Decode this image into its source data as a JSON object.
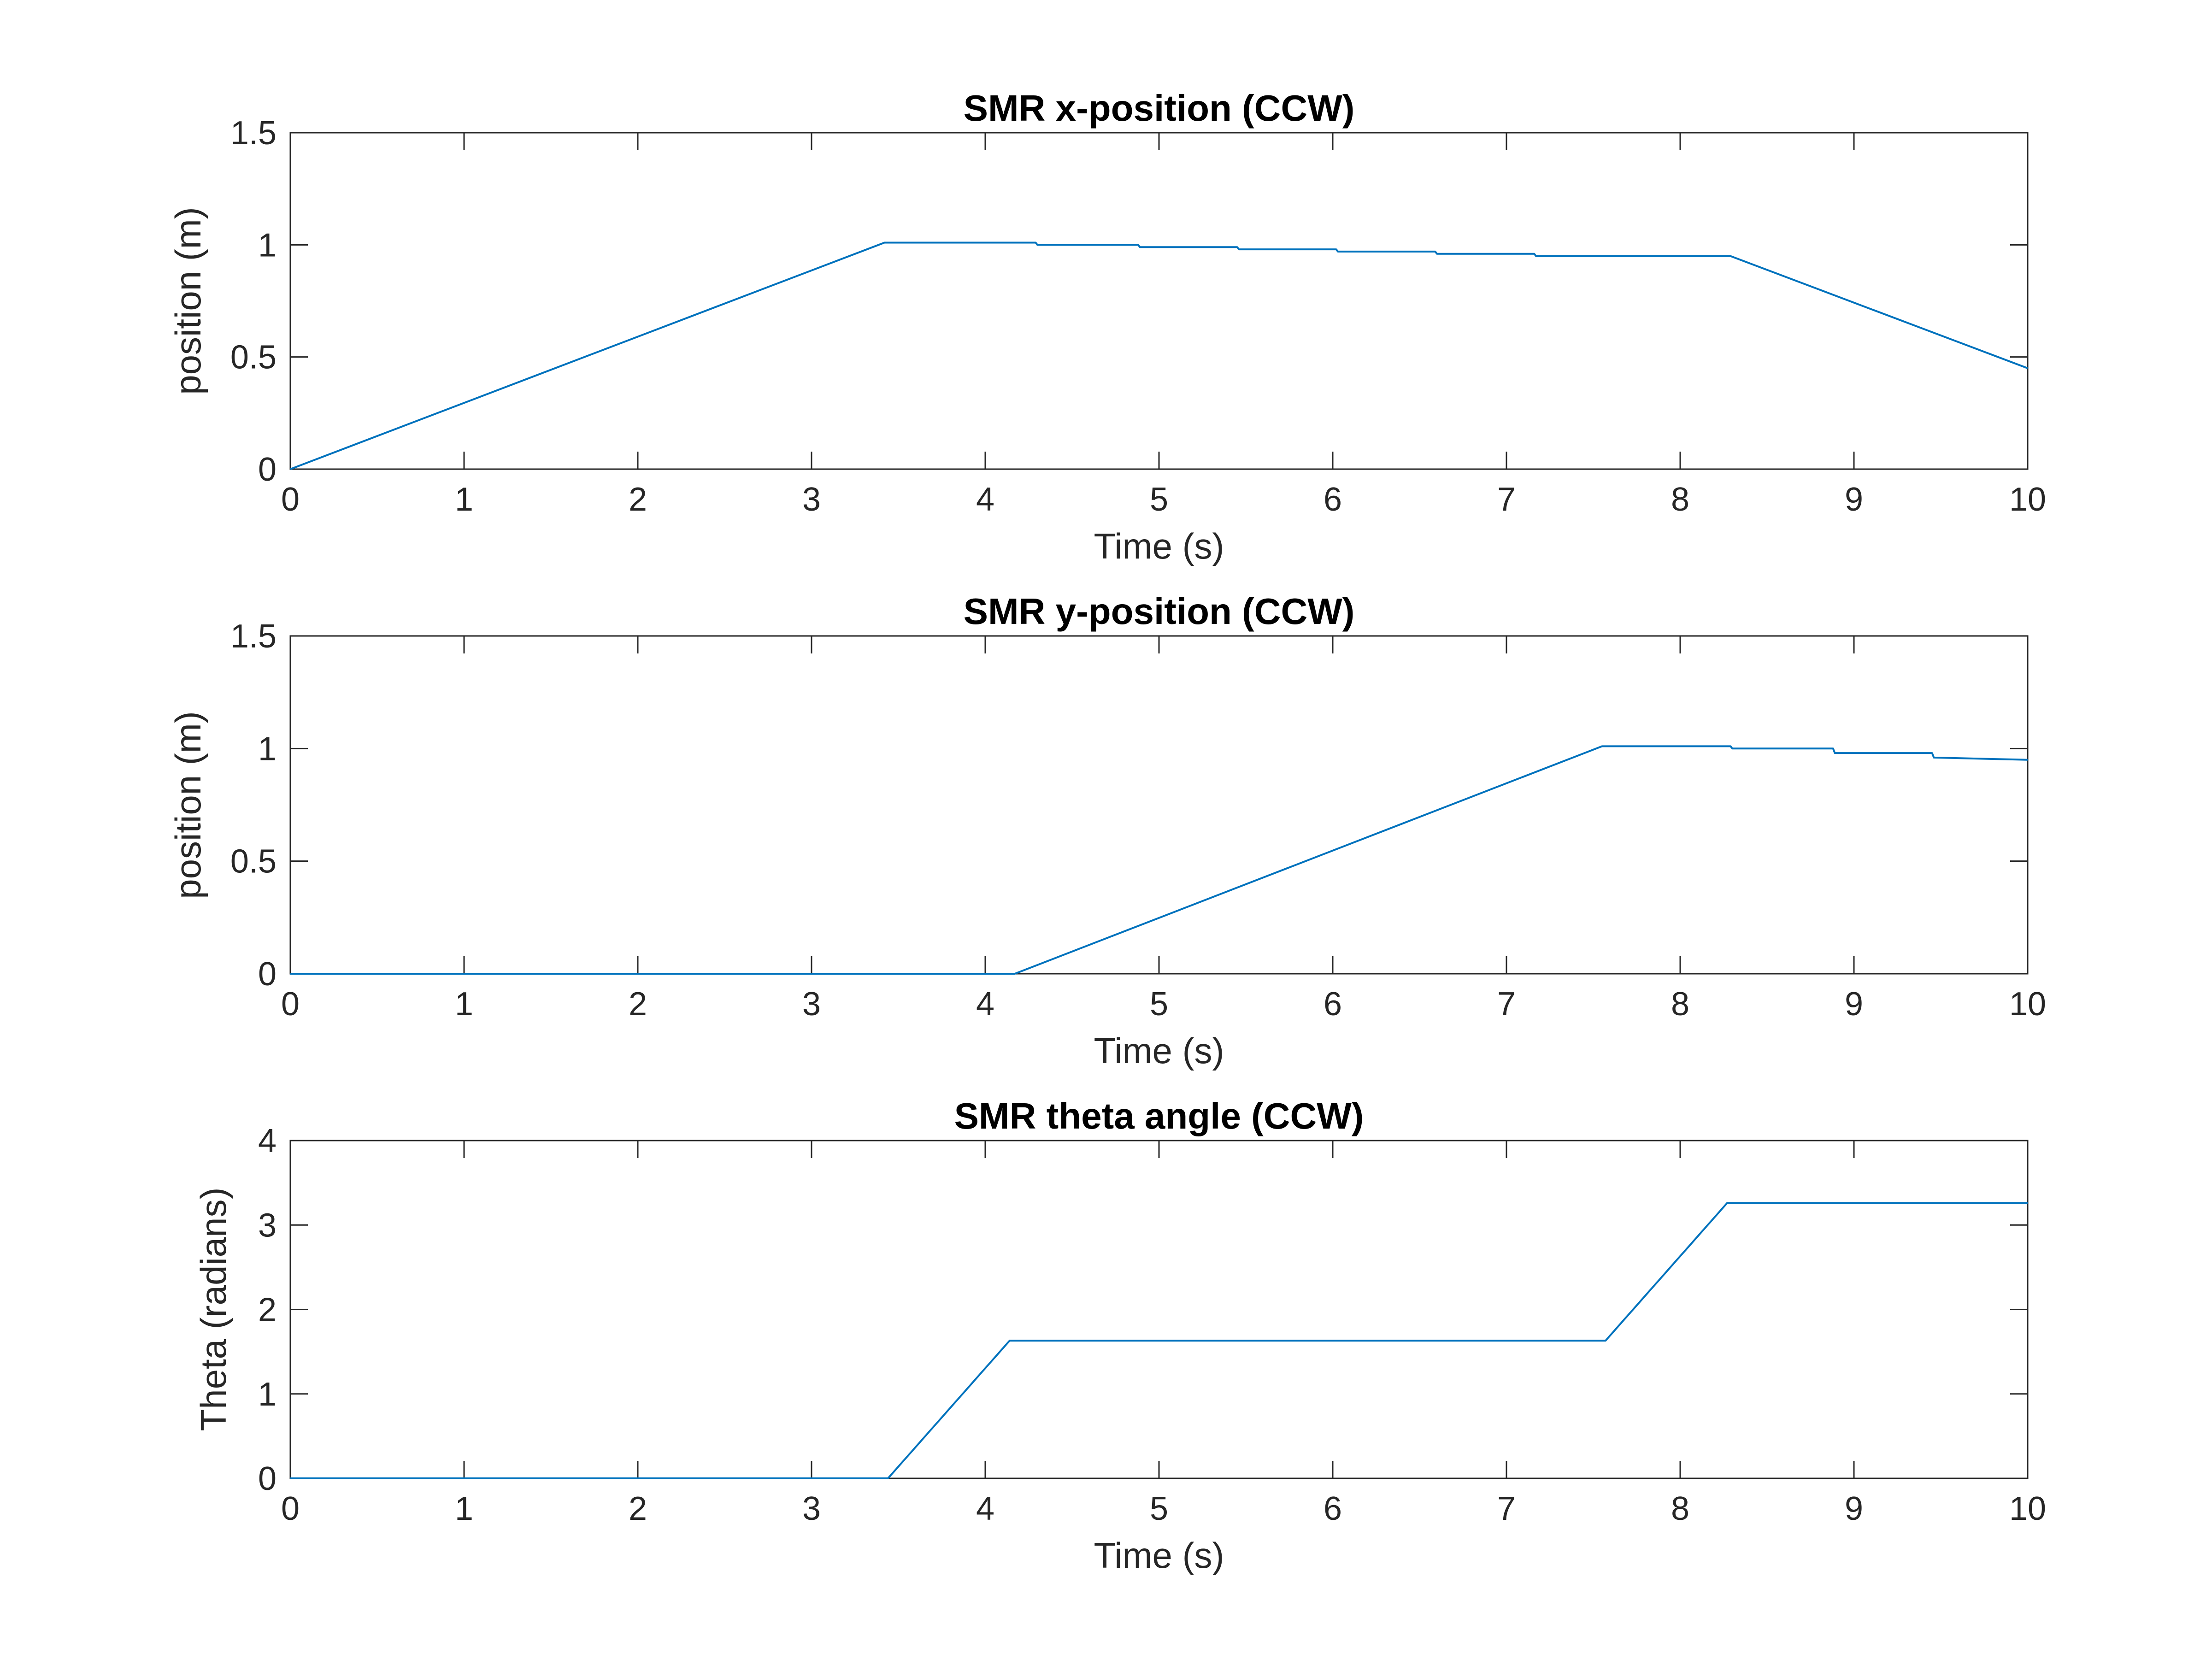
{
  "chart_data": [
    {
      "type": "line",
      "title": "SMR x-position (CCW)",
      "xlabel": "Time (s)",
      "ylabel": "position (m)",
      "xlim": [
        0,
        10
      ],
      "ylim": [
        0,
        1.5
      ],
      "xticks": [
        "0",
        "1",
        "2",
        "3",
        "4",
        "5",
        "6",
        "7",
        "8",
        "9",
        "10"
      ],
      "yticks": [
        "0",
        "0.5",
        "1",
        "1.5"
      ],
      "grid": false,
      "color": "#0072BD",
      "x": [
        0,
        3.42,
        4.29,
        4.3,
        4.88,
        4.89,
        5.45,
        5.46,
        6.02,
        6.03,
        6.59,
        6.6,
        7.16,
        7.17,
        7.73,
        7.74,
        8.29,
        10
      ],
      "y": [
        0,
        1.01,
        1.01,
        1.0,
        1.0,
        0.99,
        0.99,
        0.98,
        0.98,
        0.97,
        0.97,
        0.96,
        0.96,
        0.95,
        0.95,
        0.95,
        0.95,
        0.45
      ]
    },
    {
      "type": "line",
      "title": "SMR y-position (CCW)",
      "xlabel": "Time (s)",
      "ylabel": "position (m)",
      "xlim": [
        0,
        10
      ],
      "ylim": [
        0,
        1.5
      ],
      "xticks": [
        "0",
        "1",
        "2",
        "3",
        "4",
        "5",
        "6",
        "7",
        "8",
        "9",
        "10"
      ],
      "yticks": [
        "0",
        "0.5",
        "1",
        "1.5"
      ],
      "grid": false,
      "color": "#0072BD",
      "x": [
        0,
        4.17,
        7.55,
        8.29,
        8.3,
        8.88,
        8.89,
        9.45,
        9.46,
        10
      ],
      "y": [
        0,
        0,
        1.01,
        1.01,
        1.0,
        1.0,
        0.98,
        0.98,
        0.96,
        0.95
      ]
    },
    {
      "type": "line",
      "title": "SMR theta angle (CCW)",
      "xlabel": "Time (s)",
      "ylabel": "Theta (radians)",
      "xlim": [
        0,
        10
      ],
      "ylim": [
        0,
        4
      ],
      "xticks": [
        "0",
        "1",
        "2",
        "3",
        "4",
        "5",
        "6",
        "7",
        "8",
        "9",
        "10"
      ],
      "yticks": [
        "0",
        "1",
        "2",
        "3",
        "4"
      ],
      "grid": false,
      "color": "#0072BD",
      "x": [
        0,
        3.44,
        4.14,
        7.57,
        8.27,
        10
      ],
      "y": [
        0,
        0,
        1.63,
        1.63,
        3.26,
        3.26
      ]
    }
  ]
}
